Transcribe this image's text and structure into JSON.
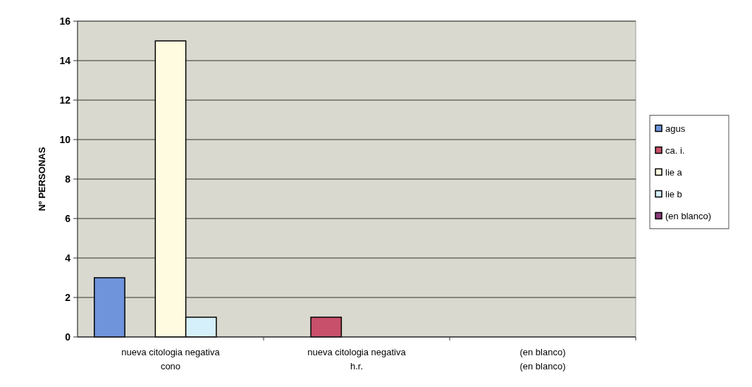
{
  "chart_data": {
    "type": "bar",
    "ylabel": "Nº PERSONAS",
    "categories": [
      "nueva citologia negativa\ncono",
      "nueva citologia negativa\nh.r.",
      "(en blanco)\n(en blanco)"
    ],
    "series": [
      {
        "name": "agus",
        "color": "#6f94dc",
        "values": [
          3,
          null,
          null
        ]
      },
      {
        "name": "ca. i.",
        "color": "#c8506a",
        "values": [
          null,
          1,
          null
        ]
      },
      {
        "name": "lie a",
        "color": "#fffbe0",
        "values": [
          15,
          null,
          null
        ]
      },
      {
        "name": "lie b",
        "color": "#d6f0fb",
        "values": [
          1,
          null,
          null
        ]
      },
      {
        "name": "(en blanco)",
        "color": "#8a3a7a",
        "values": [
          null,
          null,
          null
        ]
      }
    ],
    "ylim": [
      0,
      16
    ],
    "yticks": [
      0,
      2,
      4,
      6,
      8,
      10,
      12,
      14,
      16
    ],
    "grid": "y",
    "legend": "right"
  }
}
